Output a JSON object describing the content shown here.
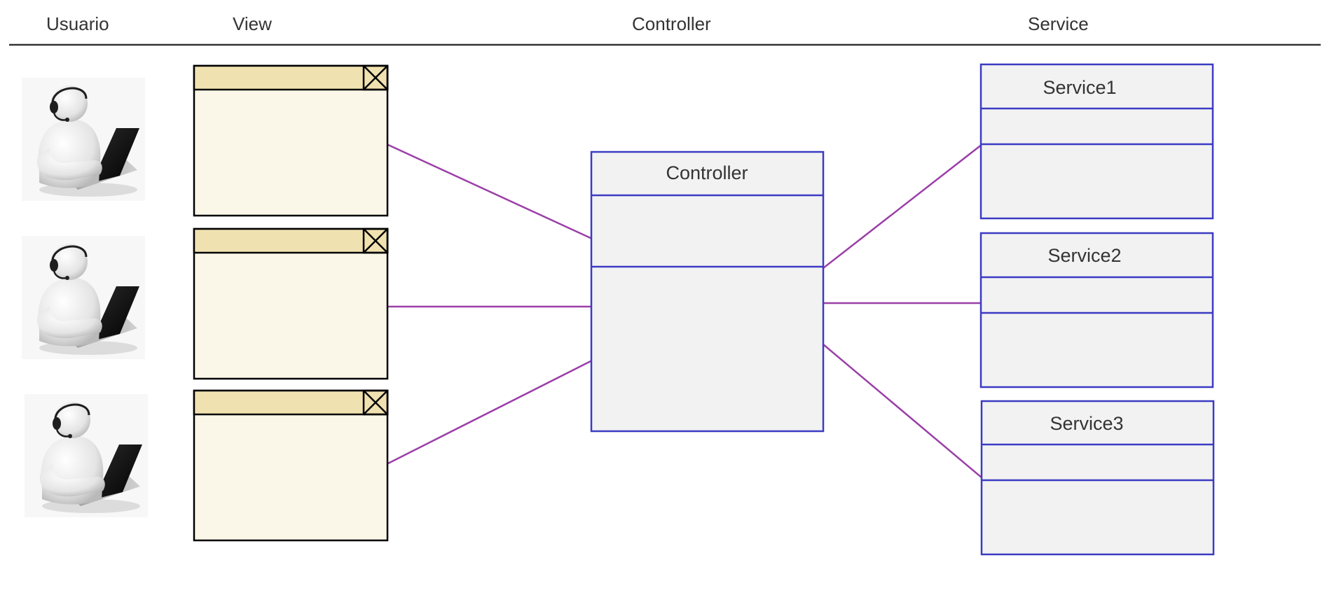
{
  "headers": {
    "usuario": "Usuario",
    "view": "View",
    "controller": "Controller",
    "service": "Service"
  },
  "controller": {
    "title": "Controller"
  },
  "services": [
    {
      "title": "Service1"
    },
    {
      "title": "Service2"
    },
    {
      "title": "Service3"
    }
  ],
  "users": [
    {
      "icon": "user-with-headset-laptop-icon"
    },
    {
      "icon": "user-with-headset-laptop-icon"
    },
    {
      "icon": "user-with-headset-laptop-icon"
    }
  ],
  "views": [
    {
      "icon": "window-close-icon"
    },
    {
      "icon": "window-close-icon"
    },
    {
      "icon": "window-close-icon"
    }
  ],
  "colors": {
    "box_border": "#3b3bc4",
    "box_fill": "#f2f2f2",
    "connector": "#9b3fa8",
    "window_titlebar": "#f0e2b0",
    "window_body": "#faf6e8",
    "header_rule": "#333333"
  }
}
